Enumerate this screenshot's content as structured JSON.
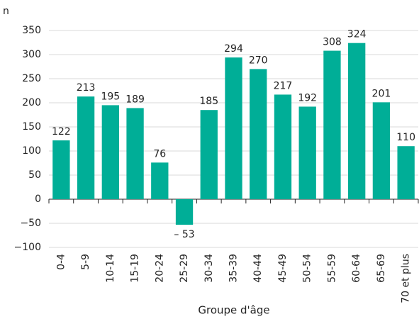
{
  "chart_data": {
    "type": "bar",
    "y_axis_label": "n",
    "x_axis_label": "Groupe d'âge",
    "categories": [
      "0-4",
      "5-9",
      "10-14",
      "15-19",
      "20-24",
      "25-29",
      "30-34",
      "35-39",
      "40-44",
      "45-49",
      "50-54",
      "55-59",
      "60-64",
      "65-69",
      "70 et plus"
    ],
    "values": [
      122,
      213,
      195,
      189,
      76,
      -53,
      185,
      294,
      270,
      217,
      192,
      308,
      324,
      201,
      110
    ],
    "value_labels": [
      "122",
      "213",
      "195",
      "189",
      "76",
      "– 53",
      "185",
      "294",
      "270",
      "217",
      "192",
      "308",
      "324",
      "201",
      "110"
    ],
    "color": "#00ae97",
    "ylim": [
      -100,
      350
    ],
    "yticks": [
      {
        "value": -100,
        "label": "−100"
      },
      {
        "value": -50,
        "label": "−50"
      },
      0,
      50,
      100,
      150,
      200,
      250,
      300,
      350
    ],
    "grid": true
  }
}
